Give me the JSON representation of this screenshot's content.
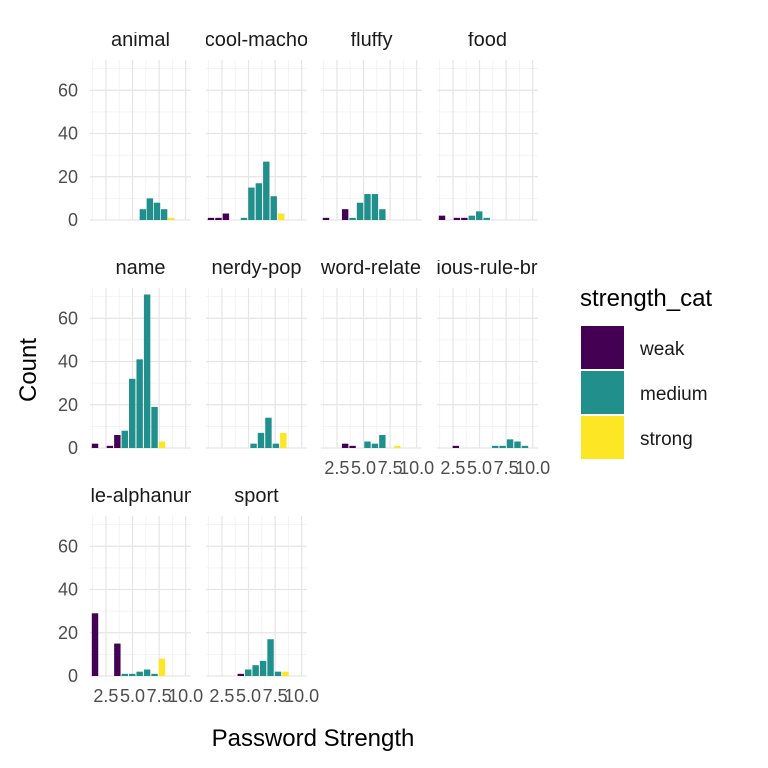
{
  "chart_data": {
    "type": "bar",
    "xlabel": "Password Strength",
    "ylabel": "Count",
    "xlim": [
      1,
      10.5
    ],
    "ylim": [
      0,
      74
    ],
    "x_ticks": [
      2.5,
      5.0,
      7.5,
      10.0
    ],
    "x_tick_labels": [
      "2.5",
      "5.0",
      "7.5",
      "10.0"
    ],
    "y_ticks": [
      0,
      20,
      40,
      60
    ],
    "y_tick_labels": [
      "0",
      "20",
      "40",
      "60"
    ],
    "grid": true,
    "legend": {
      "title": "strength_cat",
      "position": "right",
      "entries": [
        {
          "label": "weak",
          "color": "#440154"
        },
        {
          "label": "medium",
          "color": "#21908C"
        },
        {
          "label": "strong",
          "color": "#FDE725"
        }
      ]
    },
    "panels": [
      {
        "label": "animal",
        "bars": [
          {
            "x": 6,
            "value": 5,
            "cat": "medium"
          },
          {
            "x": 6.66,
            "value": 10,
            "cat": "medium"
          },
          {
            "x": 7.33,
            "value": 8,
            "cat": "medium"
          },
          {
            "x": 8,
            "value": 5,
            "cat": "medium"
          },
          {
            "x": 8.66,
            "value": 1,
            "cat": "strong"
          }
        ]
      },
      {
        "label": "cool-macho",
        "bars": [
          {
            "x": 1.5,
            "value": 1,
            "cat": "weak"
          },
          {
            "x": 2.2,
            "value": 1,
            "cat": "weak"
          },
          {
            "x": 2.9,
            "value": 3,
            "cat": "weak"
          },
          {
            "x": 4.6,
            "value": 1,
            "cat": "medium"
          },
          {
            "x": 5.3,
            "value": 15,
            "cat": "medium"
          },
          {
            "x": 6,
            "value": 17,
            "cat": "medium"
          },
          {
            "x": 6.7,
            "value": 27,
            "cat": "medium"
          },
          {
            "x": 7.4,
            "value": 11,
            "cat": "medium"
          },
          {
            "x": 8.1,
            "value": 3,
            "cat": "strong"
          }
        ]
      },
      {
        "label": "fluffy",
        "bars": [
          {
            "x": 1.5,
            "value": 1,
            "cat": "weak"
          },
          {
            "x": 3.3,
            "value": 5,
            "cat": "weak"
          },
          {
            "x": 4,
            "value": 1,
            "cat": "medium"
          },
          {
            "x": 4.7,
            "value": 8,
            "cat": "medium"
          },
          {
            "x": 5.4,
            "value": 12,
            "cat": "medium"
          },
          {
            "x": 6.1,
            "value": 12,
            "cat": "medium"
          },
          {
            "x": 6.8,
            "value": 5,
            "cat": "medium"
          }
        ]
      },
      {
        "label": "food",
        "bars": [
          {
            "x": 1.5,
            "value": 2,
            "cat": "weak"
          },
          {
            "x": 2.9,
            "value": 1,
            "cat": "weak"
          },
          {
            "x": 3.6,
            "value": 1,
            "cat": "weak"
          },
          {
            "x": 4.3,
            "value": 2,
            "cat": "medium"
          },
          {
            "x": 5,
            "value": 4,
            "cat": "medium"
          },
          {
            "x": 5.7,
            "value": 1,
            "cat": "medium"
          }
        ]
      },
      {
        "label": "name",
        "bars": [
          {
            "x": 1.5,
            "value": 2,
            "cat": "weak"
          },
          {
            "x": 2.9,
            "value": 1,
            "cat": "weak"
          },
          {
            "x": 3.6,
            "value": 6,
            "cat": "weak"
          },
          {
            "x": 4.3,
            "value": 8,
            "cat": "medium"
          },
          {
            "x": 5,
            "value": 32,
            "cat": "medium"
          },
          {
            "x": 5.7,
            "value": 41,
            "cat": "medium"
          },
          {
            "x": 6.4,
            "value": 71,
            "cat": "medium"
          },
          {
            "x": 7.1,
            "value": 19,
            "cat": "medium"
          },
          {
            "x": 7.8,
            "value": 3,
            "cat": "strong"
          }
        ]
      },
      {
        "label": "nerdy-pop",
        "bars": [
          {
            "x": 5.5,
            "value": 2,
            "cat": "medium"
          },
          {
            "x": 6.2,
            "value": 7,
            "cat": "medium"
          },
          {
            "x": 6.9,
            "value": 14,
            "cat": "medium"
          },
          {
            "x": 7.6,
            "value": 2,
            "cat": "medium"
          },
          {
            "x": 8.3,
            "value": 7,
            "cat": "strong"
          }
        ]
      },
      {
        "label": "sword-related",
        "bars": [
          {
            "x": 3.3,
            "value": 2,
            "cat": "weak"
          },
          {
            "x": 4,
            "value": 1,
            "cat": "weak"
          },
          {
            "x": 5.4,
            "value": 3,
            "cat": "medium"
          },
          {
            "x": 6.1,
            "value": 2,
            "cat": "medium"
          },
          {
            "x": 6.8,
            "value": 6,
            "cat": "medium"
          },
          {
            "x": 8.2,
            "value": 1,
            "cat": "strong"
          }
        ]
      },
      {
        "label": "rebellious-rule-breaker",
        "bars": [
          {
            "x": 2.8,
            "value": 1,
            "cat": "weak"
          },
          {
            "x": 6.5,
            "value": 1,
            "cat": "medium"
          },
          {
            "x": 7.2,
            "value": 1,
            "cat": "medium"
          },
          {
            "x": 7.9,
            "value": 4,
            "cat": "medium"
          },
          {
            "x": 8.6,
            "value": 3,
            "cat": "medium"
          },
          {
            "x": 9.3,
            "value": 1,
            "cat": "medium"
          }
        ]
      },
      {
        "label": "simple-alphanumeric",
        "bars": [
          {
            "x": 1.5,
            "value": 29,
            "cat": "weak"
          },
          {
            "x": 3.6,
            "value": 15,
            "cat": "weak"
          },
          {
            "x": 4.3,
            "value": 1,
            "cat": "medium"
          },
          {
            "x": 5,
            "value": 1,
            "cat": "medium"
          },
          {
            "x": 5.7,
            "value": 2,
            "cat": "medium"
          },
          {
            "x": 6.4,
            "value": 3,
            "cat": "medium"
          },
          {
            "x": 7.1,
            "value": 1,
            "cat": "medium"
          },
          {
            "x": 7.8,
            "value": 8,
            "cat": "strong"
          }
        ]
      },
      {
        "label": "sport",
        "bars": [
          {
            "x": 4.3,
            "value": 1,
            "cat": "weak"
          },
          {
            "x": 5,
            "value": 3,
            "cat": "medium"
          },
          {
            "x": 5.7,
            "value": 5,
            "cat": "medium"
          },
          {
            "x": 6.4,
            "value": 7,
            "cat": "medium"
          },
          {
            "x": 7.1,
            "value": 17,
            "cat": "medium"
          },
          {
            "x": 7.8,
            "value": 2,
            "cat": "medium"
          },
          {
            "x": 8.5,
            "value": 2,
            "cat": "strong"
          }
        ]
      }
    ]
  }
}
